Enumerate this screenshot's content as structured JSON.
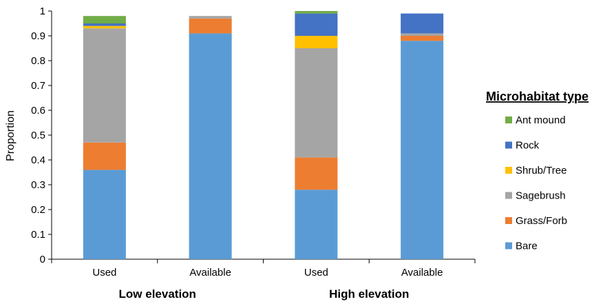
{
  "chart_data": {
    "type": "bar",
    "stacked": true,
    "ylabel": "Proportion",
    "ylim": [
      0,
      1
    ],
    "yticks": [
      "0",
      "0.1",
      "0.2",
      "0.3",
      "0.4",
      "0.5",
      "0.6",
      "0.7",
      "0.8",
      "0.9",
      "1"
    ],
    "categories": [
      "Used",
      "Available",
      "Used",
      "Available"
    ],
    "groups": [
      {
        "label": "Low elevation",
        "categories": [
          0,
          1
        ]
      },
      {
        "label": "High elevation",
        "categories": [
          2,
          3
        ]
      }
    ],
    "legend_title": "Microhabitat type",
    "legend_position": "right",
    "grid": false,
    "series": [
      {
        "name": "Bare",
        "color": "#5B9BD5",
        "values": [
          0.36,
          0.91,
          0.28,
          0.88
        ]
      },
      {
        "name": "Grass/Forb",
        "color": "#ED7D31",
        "values": [
          0.11,
          0.06,
          0.13,
          0.02
        ]
      },
      {
        "name": "Sagebrush",
        "color": "#A5A5A5",
        "values": [
          0.46,
          0.01,
          0.44,
          0.01
        ]
      },
      {
        "name": "Shrub/Tree",
        "color": "#FFC000",
        "values": [
          0.01,
          0.0,
          0.05,
          0.0
        ]
      },
      {
        "name": "Rock",
        "color": "#4472C4",
        "values": [
          0.01,
          0.0,
          0.09,
          0.08
        ]
      },
      {
        "name": "Ant mound",
        "color": "#70AD47",
        "values": [
          0.03,
          0.0,
          0.01,
          0.0
        ]
      }
    ]
  }
}
